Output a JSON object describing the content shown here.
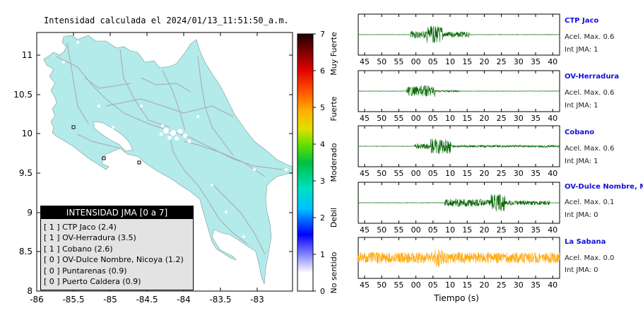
{
  "map": {
    "title": "Intensidad calculada el 2024/01/13_11:51:50_a.m.",
    "lat_ticks": [
      "11",
      "10.5",
      "10",
      "9.5",
      "9",
      "8.5",
      "8"
    ],
    "lon_ticks": [
      "-86",
      "-85.5",
      "-85",
      "-84.5",
      "-84",
      "-83.5",
      "-83"
    ],
    "land_color": "#b3eaea"
  },
  "colorbar": {
    "values": [
      "0",
      "1",
      "2",
      "3",
      "4",
      "5",
      "6",
      "7"
    ],
    "labels": [
      "No sentido",
      "Debil",
      "Moderado",
      "Fuerte",
      "Muy Fuerte"
    ]
  },
  "legend": {
    "title": "INTENSIDAD JMA [0 a 7]",
    "items": [
      {
        "code": "[ 1 ]",
        "name": "CTP Jaco (2.4)"
      },
      {
        "code": "[ 1 ]",
        "name": "OV-Herradura (3.5)"
      },
      {
        "code": "[ 1 ]",
        "name": "Cobano (2.6)"
      },
      {
        "code": "[ 0 ]",
        "name": "OV-Dulce Nombre, Nicoya (1.2)"
      },
      {
        "code": "[ 0 ]",
        "name": "Puntarenas (0.9)"
      },
      {
        "code": "[ 0 ]",
        "name": "Puerto Caldera (0.9)"
      }
    ]
  },
  "traces": {
    "time_ticks": [
      "45",
      "50",
      "55",
      "00",
      "05",
      "10",
      "15",
      "20",
      "25",
      "30",
      "35",
      "40"
    ],
    "xlabel": "Tiempo (s)",
    "stations": [
      {
        "name": "CTP Jaco",
        "acel": "Acel. Max. 0.6",
        "jma": "Int JMA: 1",
        "color": "#006400"
      },
      {
        "name": "OV-Herradura",
        "acel": "Acel. Max. 0.6",
        "jma": "Int JMA: 1",
        "color": "#006400"
      },
      {
        "name": "Cobano",
        "acel": "Acel. Max. 0.6",
        "jma": "Int JMA: 1",
        "color": "#006400"
      },
      {
        "name": "OV-Dulce Nombre, Nicoya",
        "acel": "Acel. Max. 0.1",
        "jma": "Int JMA: 0",
        "color": "#006400"
      },
      {
        "name": "La Sabana",
        "acel": "Acel. Max. 0.0",
        "jma": "Int JMA: 0",
        "color": "#ffa500"
      }
    ]
  }
}
